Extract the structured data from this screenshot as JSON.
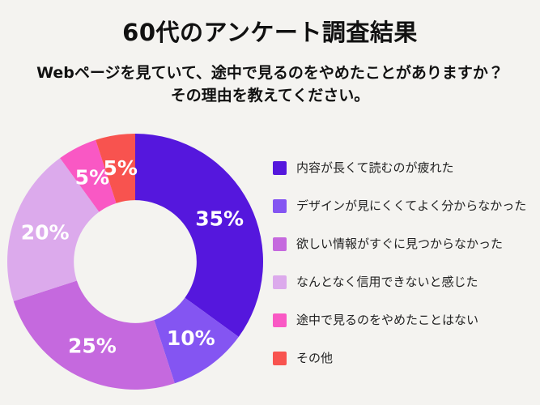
{
  "page": {
    "title": "60代のアンケート調査結果",
    "subtitle_line1": "Webページを見ていて、途中で見るのをやめたことがありますか？",
    "subtitle_line2": "その理由を教えてください。"
  },
  "colors": {
    "background": "#f4f3f0",
    "heading_text": "#111111",
    "legend_text": "#222222",
    "data_label_text": "#ffffff"
  },
  "chart_data": {
    "type": "pie",
    "subtype": "donut",
    "title": "60代のアンケート調査結果",
    "question": "Webページを見ていて、途中で見るのをやめたことがありますか？その理由を教えてください。",
    "start_angle_deg": 0,
    "direction": "clockwise",
    "inner_radius_ratio": 0.48,
    "legend_position": "right",
    "data_labels": "percent-inside-white",
    "segments": [
      {
        "label": "内容が長くて読むのが疲れた",
        "value_pct": 35,
        "data_label": "35%",
        "color": "#5517dd"
      },
      {
        "label": "デザインが見にくくてよく分からなかった",
        "value_pct": 10,
        "data_label": "10%",
        "color": "#8455f2"
      },
      {
        "label": "欲しい情報がすぐに見つからなかった",
        "value_pct": 25,
        "data_label": "25%",
        "color": "#c569de"
      },
      {
        "label": "なんとなく信用できないと感じた",
        "value_pct": 20,
        "data_label": "20%",
        "color": "#dcaaec"
      },
      {
        "label": "途中で見るのをやめたことはない",
        "value_pct": 5,
        "data_label": "5%",
        "color": "#f958c4"
      },
      {
        "label": "その他",
        "value_pct": 5,
        "data_label": "5%",
        "color": "#f8534f"
      }
    ]
  }
}
